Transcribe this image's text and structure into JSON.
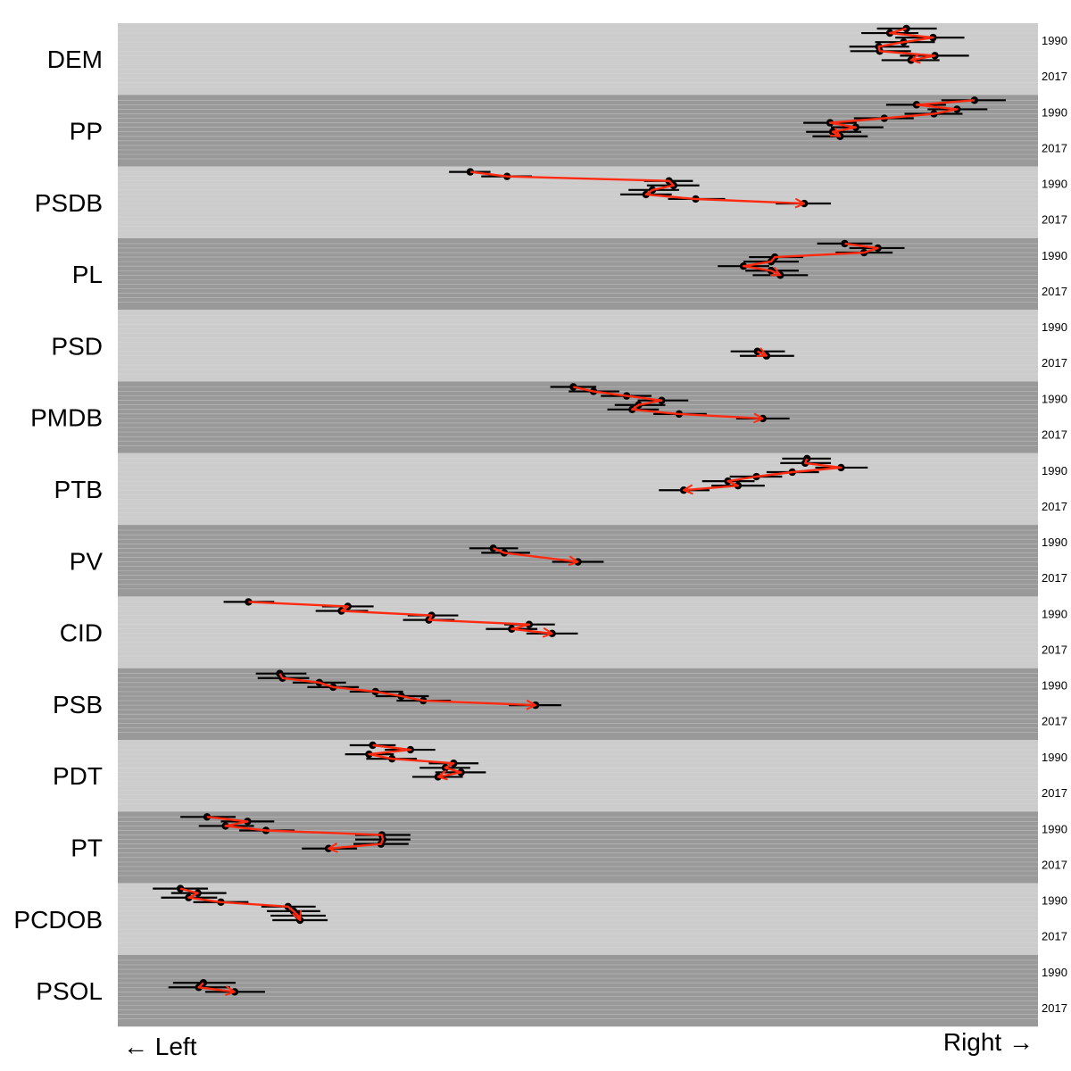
{
  "chart_data": {
    "type": "scatter",
    "title": "",
    "xlabel_left": "← Left",
    "xlabel_right": "Right →",
    "xlim": [
      0,
      1000
    ],
    "year_range": [
      1990,
      2017
    ],
    "grid": "horizontal per year",
    "colors": {
      "band_light": "#cccccc",
      "band_dark": "#999999",
      "gridline": "#dddddd",
      "point": "#000000",
      "errorbar": "#000000",
      "arrow": "#ff2a10"
    },
    "parties": [
      {
        "name": "DEM",
        "start_year_label": "1990",
        "end_year_label": "2017",
        "points": [
          {
            "year": 1990,
            "x": 857,
            "ci": [
              825,
              890
            ]
          },
          {
            "year": 1992,
            "x": 839,
            "ci": [
              808,
              870
            ]
          },
          {
            "year": 1994,
            "x": 886,
            "ci": [
              845,
              920
            ]
          },
          {
            "year": 1996,
            "x": 854,
            "ci": [
              823,
              888
            ]
          },
          {
            "year": 1998,
            "x": 827,
            "ci": [
              795,
              860
            ]
          },
          {
            "year": 2000,
            "x": 828,
            "ci": [
              796,
              862
            ]
          },
          {
            "year": 2002,
            "x": 888,
            "ci": [
              850,
              925
            ]
          },
          {
            "year": 2004,
            "x": 862,
            "ci": [
              830,
              893
            ]
          }
        ]
      },
      {
        "name": "PP",
        "start_year_label": "1990",
        "end_year_label": "2017",
        "points": [
          {
            "year": 1990,
            "x": 931,
            "ci": [
              895,
              965
            ]
          },
          {
            "year": 1992,
            "x": 868,
            "ci": [
              835,
              900
            ]
          },
          {
            "year": 1994,
            "x": 912,
            "ci": [
              880,
              945
            ]
          },
          {
            "year": 1996,
            "x": 887,
            "ci": [
              855,
              918
            ]
          },
          {
            "year": 1998,
            "x": 833,
            "ci": [
              800,
              865
            ]
          },
          {
            "year": 2000,
            "x": 774,
            "ci": [
              745,
              803
            ]
          },
          {
            "year": 2002,
            "x": 802,
            "ci": [
              775,
              832
            ]
          },
          {
            "year": 2004,
            "x": 777,
            "ci": [
              748,
              808
            ]
          },
          {
            "year": 2006,
            "x": 785,
            "ci": [
              755,
              815
            ]
          }
        ]
      },
      {
        "name": "PSDB",
        "start_year_label": "1990",
        "end_year_label": "2017",
        "points": [
          {
            "year": 1990,
            "x": 383,
            "ci": [
              360,
              405
            ]
          },
          {
            "year": 1992,
            "x": 423,
            "ci": [
              395,
              450
            ]
          },
          {
            "year": 1994,
            "x": 599,
            "ci": [
              572,
              625
            ]
          },
          {
            "year": 1996,
            "x": 604,
            "ci": [
              575,
              632
            ]
          },
          {
            "year": 1998,
            "x": 581,
            "ci": [
              555,
              610
            ]
          },
          {
            "year": 2000,
            "x": 574,
            "ci": [
              546,
              602
            ]
          },
          {
            "year": 2002,
            "x": 628,
            "ci": [
              598,
              660
            ]
          },
          {
            "year": 2004,
            "x": 746,
            "ci": [
              715,
              775
            ]
          }
        ]
      },
      {
        "name": "PL",
        "start_year_label": "1990",
        "end_year_label": "2017",
        "points": [
          {
            "year": 1990,
            "x": 790,
            "ci": [
              760,
              820
            ]
          },
          {
            "year": 1992,
            "x": 826,
            "ci": [
              795,
              855
            ]
          },
          {
            "year": 1994,
            "x": 811,
            "ci": [
              780,
              842
            ]
          },
          {
            "year": 1996,
            "x": 714,
            "ci": [
              686,
              745
            ]
          },
          {
            "year": 1998,
            "x": 710,
            "ci": [
              680,
              740
            ]
          },
          {
            "year": 2000,
            "x": 680,
            "ci": [
              652,
              708
            ]
          },
          {
            "year": 2002,
            "x": 710,
            "ci": [
              682,
              740
            ]
          },
          {
            "year": 2004,
            "x": 720,
            "ci": [
              690,
              750
            ]
          }
        ]
      },
      {
        "name": "PSD",
        "start_year_label": "1990",
        "end_year_label": "2017",
        "points": [
          {
            "year": 2006,
            "x": 695,
            "ci": [
              666,
              725
            ]
          },
          {
            "year": 2008,
            "x": 705,
            "ci": [
              676,
              735
            ]
          }
        ]
      },
      {
        "name": "PMDB",
        "start_year_label": "1990",
        "end_year_label": "2017",
        "points": [
          {
            "year": 1990,
            "x": 495,
            "ci": [
              470,
              520
            ]
          },
          {
            "year": 1992,
            "x": 517,
            "ci": [
              490,
              545
            ]
          },
          {
            "year": 1994,
            "x": 553,
            "ci": [
              525,
              580
            ]
          },
          {
            "year": 1996,
            "x": 591,
            "ci": [
              565,
              620
            ]
          },
          {
            "year": 1998,
            "x": 566,
            "ci": [
              540,
              595
            ]
          },
          {
            "year": 2000,
            "x": 559,
            "ci": [
              532,
              588
            ]
          },
          {
            "year": 2002,
            "x": 610,
            "ci": [
              582,
              640
            ]
          },
          {
            "year": 2004,
            "x": 701,
            "ci": [
              672,
              730
            ]
          }
        ]
      },
      {
        "name": "PTB",
        "start_year_label": "1990",
        "end_year_label": "2017",
        "points": [
          {
            "year": 1990,
            "x": 749,
            "ci": [
              722,
              775
            ]
          },
          {
            "year": 1992,
            "x": 747,
            "ci": [
              720,
              775
            ]
          },
          {
            "year": 1994,
            "x": 786,
            "ci": [
              758,
              815
            ]
          },
          {
            "year": 1996,
            "x": 733,
            "ci": [
              705,
              762
            ]
          },
          {
            "year": 1998,
            "x": 694,
            "ci": [
              665,
              722
            ]
          },
          {
            "year": 2000,
            "x": 663,
            "ci": [
              635,
              692
            ]
          },
          {
            "year": 2002,
            "x": 674,
            "ci": [
              645,
              703
            ]
          },
          {
            "year": 2004,
            "x": 615,
            "ci": [
              588,
              643
            ]
          }
        ]
      },
      {
        "name": "PV",
        "start_year_label": "1990",
        "end_year_label": "2017",
        "points": [
          {
            "year": 1998,
            "x": 408,
            "ci": [
              382,
              435
            ]
          },
          {
            "year": 2000,
            "x": 420,
            "ci": [
              395,
              448
            ]
          },
          {
            "year": 2004,
            "x": 500,
            "ci": [
              472,
              528
            ]
          }
        ]
      },
      {
        "name": "CID",
        "start_year_label": "1990",
        "end_year_label": "2017",
        "points": [
          {
            "year": 1990,
            "x": 142,
            "ci": [
              115,
              170
            ]
          },
          {
            "year": 1992,
            "x": 250,
            "ci": [
              222,
              278
            ]
          },
          {
            "year": 1994,
            "x": 243,
            "ci": [
              215,
              272
            ]
          },
          {
            "year": 1996,
            "x": 341,
            "ci": [
              315,
              370
            ]
          },
          {
            "year": 1998,
            "x": 338,
            "ci": [
              310,
              366
            ]
          },
          {
            "year": 2000,
            "x": 447,
            "ci": [
              420,
              475
            ]
          },
          {
            "year": 2002,
            "x": 428,
            "ci": [
              400,
              456
            ]
          },
          {
            "year": 2004,
            "x": 472,
            "ci": [
              444,
              500
            ]
          }
        ]
      },
      {
        "name": "PSB",
        "start_year_label": "1990",
        "end_year_label": "2017",
        "points": [
          {
            "year": 1990,
            "x": 176,
            "ci": [
              150,
              205
            ]
          },
          {
            "year": 1992,
            "x": 179,
            "ci": [
              152,
              208
            ]
          },
          {
            "year": 1994,
            "x": 219,
            "ci": [
              190,
              248
            ]
          },
          {
            "year": 1996,
            "x": 234,
            "ci": [
              206,
              262
            ]
          },
          {
            "year": 1998,
            "x": 280,
            "ci": [
              252,
              310
            ]
          },
          {
            "year": 2000,
            "x": 308,
            "ci": [
              280,
              338
            ]
          },
          {
            "year": 2002,
            "x": 332,
            "ci": [
              303,
              362
            ]
          },
          {
            "year": 2004,
            "x": 454,
            "ci": [
              425,
              482
            ]
          }
        ]
      },
      {
        "name": "PDT",
        "start_year_label": "1990",
        "end_year_label": "2017",
        "points": [
          {
            "year": 1990,
            "x": 277,
            "ci": [
              252,
              302
            ]
          },
          {
            "year": 1992,
            "x": 318,
            "ci": [
              290,
              345
            ]
          },
          {
            "year": 1994,
            "x": 273,
            "ci": [
              247,
              300
            ]
          },
          {
            "year": 1996,
            "x": 298,
            "ci": [
              270,
              325
            ]
          },
          {
            "year": 1998,
            "x": 365,
            "ci": [
              338,
              392
            ]
          },
          {
            "year": 2000,
            "x": 356,
            "ci": [
              328,
              383
            ]
          },
          {
            "year": 2002,
            "x": 373,
            "ci": [
              345,
              400
            ]
          },
          {
            "year": 2004,
            "x": 348,
            "ci": [
              320,
              375
            ]
          }
        ]
      },
      {
        "name": "PT",
        "start_year_label": "1990",
        "end_year_label": "2017",
        "points": [
          {
            "year": 1990,
            "x": 97,
            "ci": [
              68,
              128
            ]
          },
          {
            "year": 1992,
            "x": 141,
            "ci": [
              112,
              170
            ]
          },
          {
            "year": 1994,
            "x": 117,
            "ci": [
              88,
              148
            ]
          },
          {
            "year": 1996,
            "x": 161,
            "ci": [
              132,
              192
            ]
          },
          {
            "year": 1998,
            "x": 287,
            "ci": [
              258,
              318
            ]
          },
          {
            "year": 2000,
            "x": 288,
            "ci": [
              258,
              318
            ]
          },
          {
            "year": 2002,
            "x": 286,
            "ci": [
              256,
              316
            ]
          },
          {
            "year": 2004,
            "x": 229,
            "ci": [
              200,
              260
            ]
          }
        ]
      },
      {
        "name": "PCDOB",
        "start_year_label": "1990",
        "end_year_label": "2017",
        "points": [
          {
            "year": 1990,
            "x": 68,
            "ci": [
              38,
              98
            ]
          },
          {
            "year": 1992,
            "x": 87,
            "ci": [
              58,
              118
            ]
          },
          {
            "year": 1994,
            "x": 77,
            "ci": [
              47,
              108
            ]
          },
          {
            "year": 1996,
            "x": 112,
            "ci": [
              82,
              142
            ]
          },
          {
            "year": 1998,
            "x": 185,
            "ci": [
              156,
              215
            ]
          },
          {
            "year": 2000,
            "x": 191,
            "ci": [
              162,
              220
            ]
          },
          {
            "year": 2002,
            "x": 196,
            "ci": [
              166,
              226
            ]
          },
          {
            "year": 2004,
            "x": 198,
            "ci": [
              168,
              228
            ]
          }
        ]
      },
      {
        "name": "PSOL",
        "start_year_label": "1990",
        "end_year_label": "2017",
        "points": [
          {
            "year": 2000,
            "x": 93,
            "ci": [
              60,
              128
            ]
          },
          {
            "year": 2002,
            "x": 88,
            "ci": [
              55,
              122
            ]
          },
          {
            "year": 2004,
            "x": 127,
            "ci": [
              95,
              160
            ]
          }
        ]
      }
    ]
  }
}
